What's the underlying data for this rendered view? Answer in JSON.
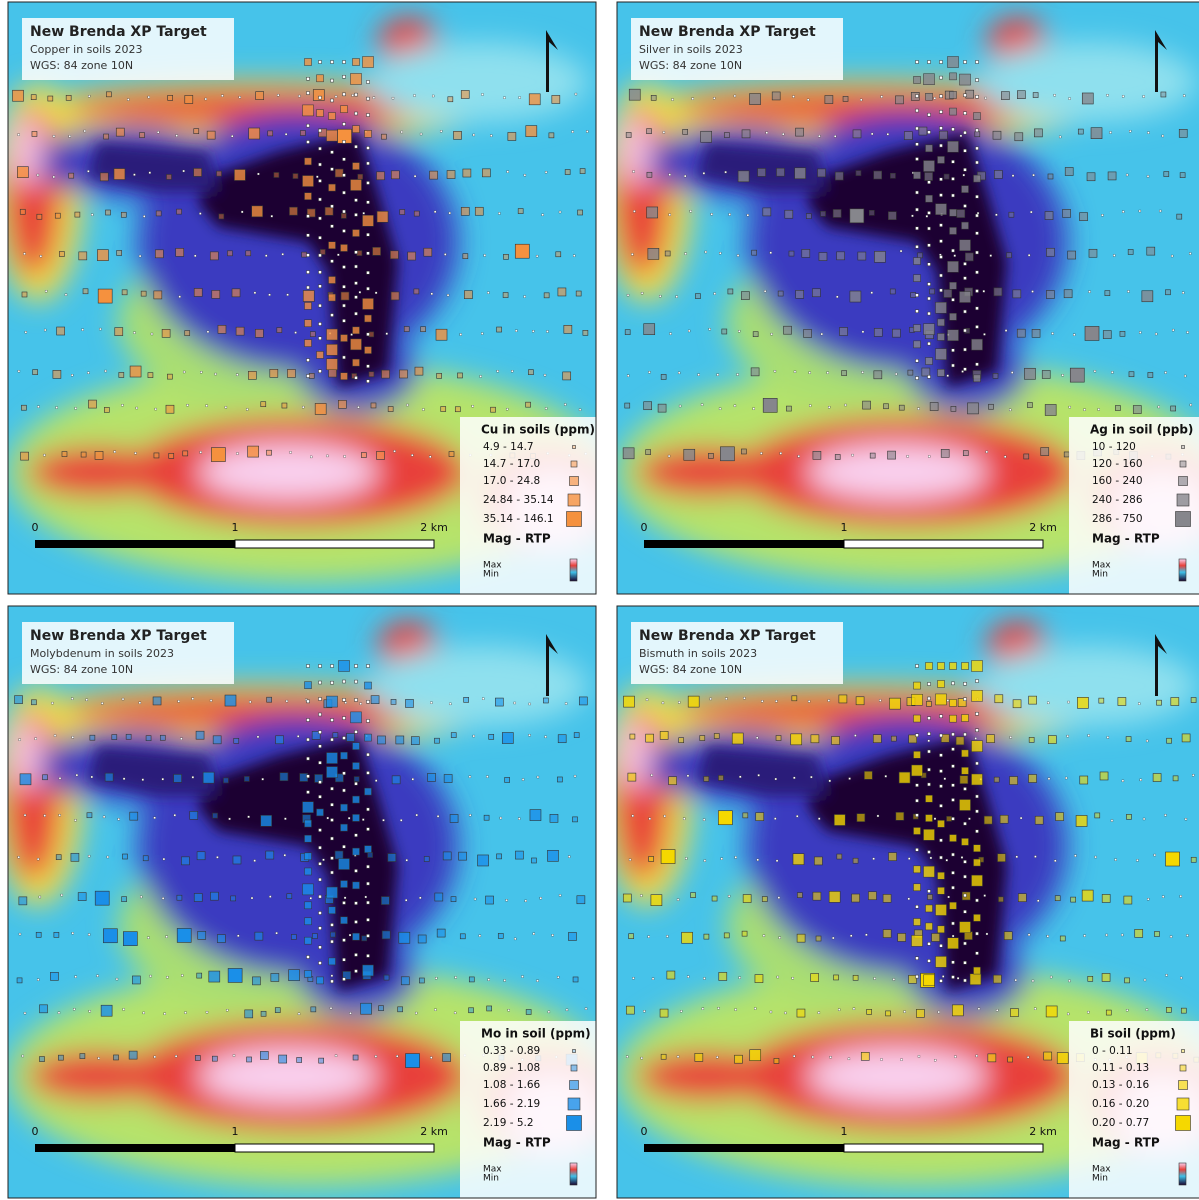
{
  "panels": [
    {
      "title": "New Brenda XP Target",
      "subtitle": "Copper in soils 2023",
      "projection": "WGS: 84 zone 10N",
      "legend_title": "Cu in soils (ppm)",
      "legend_items": [
        "4.9 - 14.7",
        "14.7 - 17.0",
        "17.0 - 24.8",
        "24.84 - 35.14",
        "35.14 - 146.1"
      ],
      "symbol_color": "#f5913e",
      "scale_labels": [
        "0",
        "1",
        "2 km"
      ],
      "raster_label": "Mag - RTP",
      "raster_max": "Max",
      "raster_min": "Min"
    },
    {
      "title": "New Brenda XP Target",
      "subtitle": "Silver in soils 2023",
      "projection": "WGS: 84 zone 10N",
      "legend_title": "Ag in soil (ppb)",
      "legend_items": [
        "10 - 120",
        "120 - 160",
        "160 - 240",
        "240 - 286",
        "286 - 750"
      ],
      "symbol_color": "#86868c",
      "scale_labels": [
        "0",
        "1",
        "2 km"
      ],
      "raster_label": "Mag - RTP",
      "raster_max": "Max",
      "raster_min": "Min"
    },
    {
      "title": "New Brenda XP Target",
      "subtitle": "Molybdenum in soils 2023",
      "projection": "WGS: 84 zone 10N",
      "legend_title": "Mo in soil (ppm)",
      "legend_items": [
        "0.33 - 0.89",
        "0.89 - 1.08",
        "1.08 - 1.66",
        "1.66 - 2.19",
        "2.19 - 5.2"
      ],
      "symbol_color": "#1a8fe8",
      "scale_labels": [
        "0",
        "1",
        "2 km"
      ],
      "raster_label": "Mag - RTP",
      "raster_max": "Max",
      "raster_min": "Min"
    },
    {
      "title": "New Brenda XP Target",
      "subtitle": "Bismuth in soils 2023",
      "projection": "WGS: 84 zone 10N",
      "legend_title": "Bi soil (ppm)",
      "legend_items": [
        "0 - 0.11",
        "0.11 - 0.13",
        "0.13 - 0.16",
        "0.16 - 0.20",
        "0.20 - 0.77"
      ],
      "symbol_color": "#f5d800",
      "scale_labels": [
        "0",
        "1",
        "2 km"
      ],
      "raster_label": "Mag - RTP",
      "raster_max": "Max",
      "raster_min": "Min"
    }
  ]
}
